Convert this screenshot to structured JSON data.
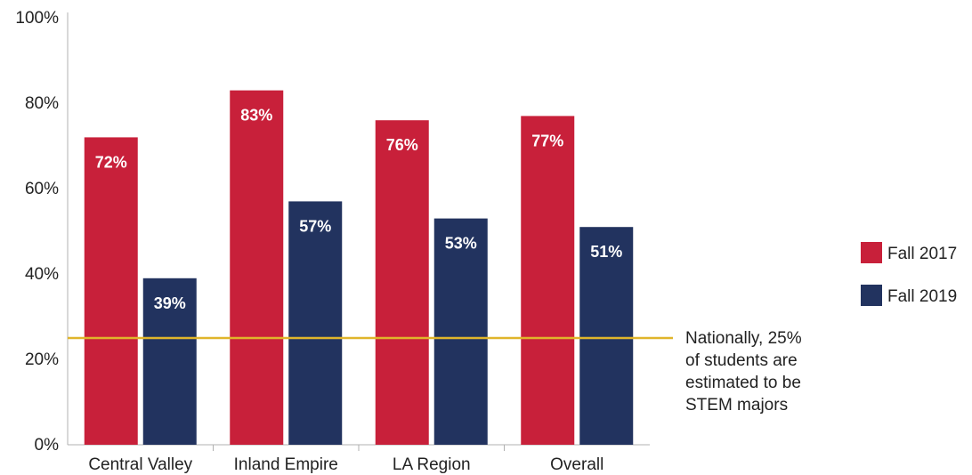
{
  "chart_data": {
    "type": "bar",
    "title": "",
    "xlabel": "",
    "ylabel": "",
    "ylim": [
      0,
      100
    ],
    "yticks": [
      0,
      20,
      40,
      60,
      80,
      100
    ],
    "ytick_labels": [
      "0%",
      "20%",
      "40%",
      "60%",
      "80%",
      "100%"
    ],
    "categories": [
      "Central Valley",
      "Inland Empire",
      "LA Region",
      "Overall"
    ],
    "series": [
      {
        "name": "Fall 2017",
        "color": "#c8203a",
        "values": [
          72,
          83,
          76,
          77
        ],
        "labels": [
          "72%",
          "83%",
          "76%",
          "77%"
        ]
      },
      {
        "name": "Fall 2019",
        "color": "#22335f",
        "values": [
          39,
          57,
          53,
          51
        ],
        "labels": [
          "39%",
          "57%",
          "53%",
          "51%"
        ]
      }
    ],
    "reference_line": {
      "value": 25,
      "color": "#e0b52b",
      "text_lines": [
        "Nationally, 25%",
        "of students are",
        "estimated to be",
        "STEM majors"
      ]
    },
    "grid": false,
    "legend_position": "right"
  }
}
